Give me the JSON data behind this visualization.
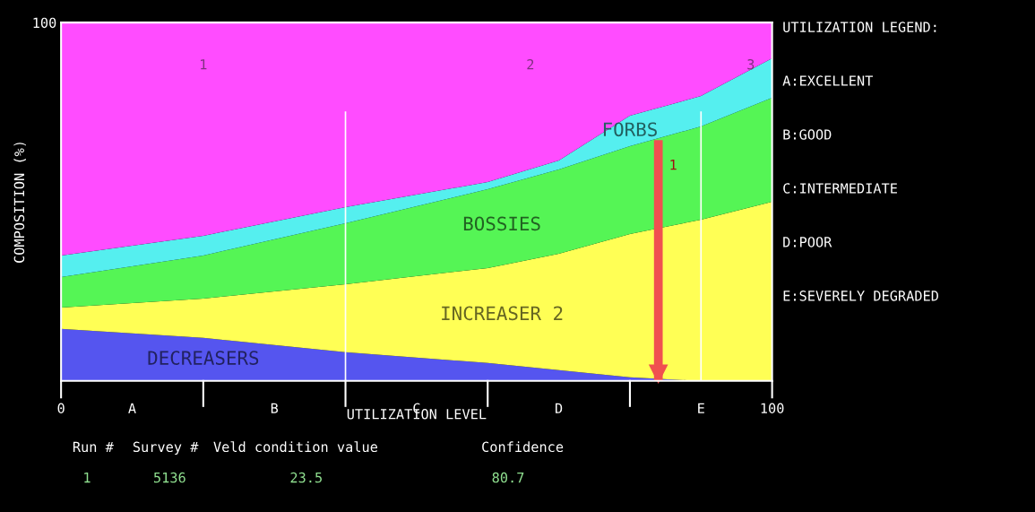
{
  "chart_data": {
    "type": "area",
    "stacked": true,
    "ylabel": "COMPOSITION (%)",
    "xlabel": "UTILIZATION LEVEL",
    "x": [
      0,
      20,
      40,
      60,
      70,
      80,
      90,
      100
    ],
    "xlim": [
      0,
      100
    ],
    "ylim": [
      0,
      100
    ],
    "xticks": [
      0,
      {
        "value": 10,
        "label": "A"
      },
      {
        "value": 30,
        "label": "B"
      },
      {
        "value": 50,
        "label": "C"
      },
      {
        "value": 70,
        "label": "D"
      },
      {
        "value": 90,
        "label": "E"
      },
      100
    ],
    "yticks": [
      100
    ],
    "series": [
      {
        "name": "DECREASERS",
        "color": "#5555ef",
        "values": [
          14.5,
          12,
          8,
          5,
          3,
          1,
          0,
          0
        ]
      },
      {
        "name": "INCREASER 2",
        "color": "#ffff55",
        "values": [
          6,
          11,
          19,
          26.5,
          32.5,
          40,
          45,
          50
        ]
      },
      {
        "name": "BOSSIES",
        "color": "#55f555",
        "values": [
          8.5,
          12,
          17,
          22,
          23.5,
          24.5,
          26,
          29
        ]
      },
      {
        "name": "FORBS",
        "color": "#55efef",
        "values": [
          6,
          5.5,
          4.5,
          2,
          2.5,
          8.5,
          8.5,
          11
        ]
      },
      {
        "color": "#ff4cff",
        "values": [
          65,
          59.5,
          51.5,
          44.5,
          38.5,
          26,
          20.5,
          10
        ]
      }
    ],
    "ref_lines": [
      {
        "axis": "x",
        "value": 40,
        "color": "#ffffff"
      },
      {
        "axis": "x",
        "value": 90,
        "color": "#ffffff"
      },
      {
        "axis": "x",
        "value": 84,
        "color": "#f05050"
      }
    ],
    "annotations": [
      "1",
      "2",
      "3",
      "1",
      "UTILIZATION LEGEND:",
      "A:EXCELLENT",
      "B:GOOD",
      "C:INTERMEDIATE",
      "D:POOR",
      "E:SEVERELY DEGRADED",
      "Run #",
      "Survey #",
      "Veld condition value",
      "Confidence",
      "1",
      "5136",
      "23.5",
      "80.7"
    ],
    "grid": false,
    "legend": false
  }
}
